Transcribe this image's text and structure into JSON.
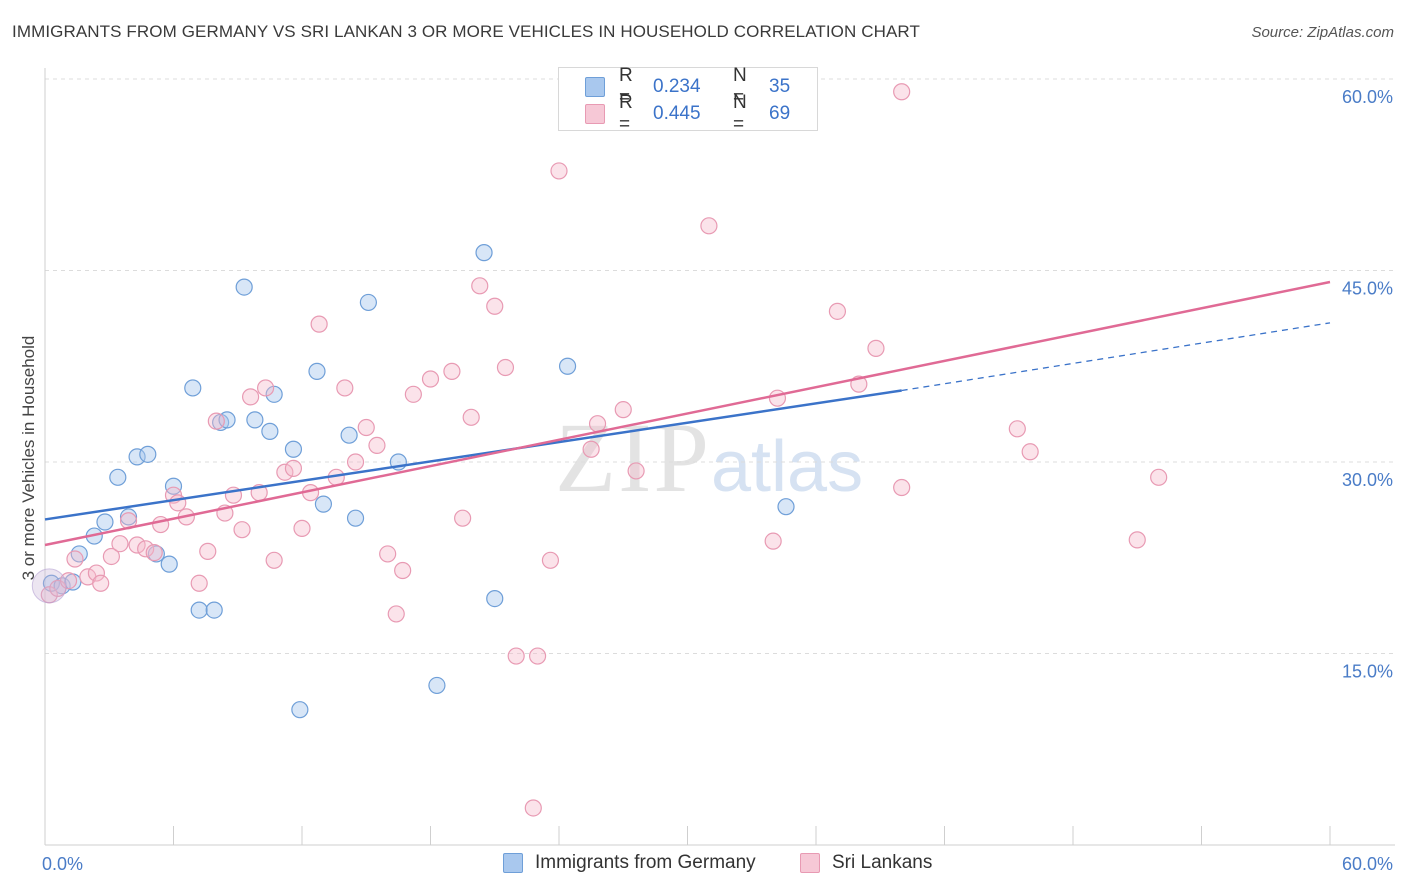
{
  "title": "IMMIGRANTS FROM GERMANY VS SRI LANKAN 3 OR MORE VEHICLES IN HOUSEHOLD CORRELATION CHART",
  "source": "Source: ZipAtlas.com",
  "watermark": {
    "zip": "ZIP",
    "atlas": "atlas"
  },
  "legend": {
    "rows": [
      {
        "r_label": "R =",
        "r_value": "0.234",
        "n_label": "N =",
        "n_value": "35",
        "color": "#a9c8ee"
      },
      {
        "r_label": "R =",
        "r_value": "0.445",
        "n_label": "N =",
        "n_value": "69",
        "color": "#f6b8cb"
      }
    ]
  },
  "bottom_legend": [
    {
      "label": "Immigrants from Germany",
      "color": "#a9c8ee"
    },
    {
      "label": "Sri Lankans",
      "color": "#f6b8cb"
    }
  ],
  "chart_data": {
    "type": "scatter",
    "title": "IMMIGRANTS FROM GERMANY VS SRI LANKAN 3 OR MORE VEHICLES IN HOUSEHOLD CORRELATION CHART",
    "xlabel": "",
    "ylabel": "3 or more Vehicles in Household",
    "xlim": [
      0,
      60
    ],
    "ylim": [
      0,
      60
    ],
    "x_tick_labels": [
      "0.0%",
      "60.0%"
    ],
    "y_ticks": [
      15,
      30,
      45,
      60
    ],
    "y_tick_labels": [
      "15.0%",
      "30.0%",
      "45.0%",
      "60.0%"
    ],
    "grid": true,
    "legend_position": "top-center",
    "series": [
      {
        "name": "Immigrants from Germany",
        "color": "#3b73c9",
        "fill": "#a9c8ee",
        "points": [
          [
            0.3,
            20.5
          ],
          [
            0.8,
            20.3
          ],
          [
            1.3,
            20.6
          ],
          [
            1.6,
            22.8
          ],
          [
            2.3,
            24.2
          ],
          [
            2.8,
            25.3
          ],
          [
            3.4,
            28.8
          ],
          [
            3.9,
            25.7
          ],
          [
            4.3,
            30.4
          ],
          [
            4.8,
            30.6
          ],
          [
            5.2,
            22.8
          ],
          [
            5.8,
            22.0
          ],
          [
            6.0,
            28.1
          ],
          [
            6.9,
            35.8
          ],
          [
            7.2,
            18.4
          ],
          [
            7.9,
            18.4
          ],
          [
            8.2,
            33.1
          ],
          [
            8.5,
            33.3
          ],
          [
            9.3,
            43.7
          ],
          [
            9.8,
            33.3
          ],
          [
            10.5,
            32.4
          ],
          [
            10.7,
            35.3
          ],
          [
            11.6,
            31.0
          ],
          [
            11.9,
            10.6
          ],
          [
            12.7,
            37.1
          ],
          [
            13.0,
            26.7
          ],
          [
            14.2,
            32.1
          ],
          [
            14.5,
            25.6
          ],
          [
            15.1,
            42.5
          ],
          [
            16.5,
            30.0
          ],
          [
            18.3,
            12.5
          ],
          [
            20.5,
            46.4
          ],
          [
            21.0,
            19.3
          ],
          [
            24.4,
            37.5
          ],
          [
            34.6,
            26.5
          ]
        ],
        "trend": {
          "x": [
            0,
            40
          ],
          "y": [
            25.5,
            35.6
          ],
          "dashed_to": [
            60,
            40.9
          ]
        }
      },
      {
        "name": "Sri Lankans",
        "color": "#e06a95",
        "fill": "#f6b8cb",
        "points": [
          [
            0.2,
            19.6
          ],
          [
            0.6,
            20.1
          ],
          [
            1.1,
            20.7
          ],
          [
            1.4,
            22.4
          ],
          [
            2.0,
            21.0
          ],
          [
            2.4,
            21.3
          ],
          [
            2.6,
            20.5
          ],
          [
            3.1,
            22.6
          ],
          [
            3.5,
            23.6
          ],
          [
            3.9,
            25.4
          ],
          [
            4.3,
            23.5
          ],
          [
            4.7,
            23.2
          ],
          [
            5.1,
            22.9
          ],
          [
            5.4,
            25.1
          ],
          [
            6.0,
            27.4
          ],
          [
            6.2,
            26.8
          ],
          [
            6.6,
            25.7
          ],
          [
            7.2,
            20.5
          ],
          [
            7.6,
            23.0
          ],
          [
            8.0,
            33.2
          ],
          [
            8.4,
            26.0
          ],
          [
            8.8,
            27.4
          ],
          [
            9.2,
            24.7
          ],
          [
            9.6,
            35.1
          ],
          [
            10.0,
            27.6
          ],
          [
            10.3,
            35.8
          ],
          [
            10.7,
            22.3
          ],
          [
            11.2,
            29.2
          ],
          [
            11.6,
            29.5
          ],
          [
            12.0,
            24.8
          ],
          [
            12.4,
            27.6
          ],
          [
            12.8,
            40.8
          ],
          [
            13.6,
            28.8
          ],
          [
            14.0,
            35.8
          ],
          [
            14.5,
            30.0
          ],
          [
            15.0,
            32.7
          ],
          [
            15.5,
            31.3
          ],
          [
            16.0,
            22.8
          ],
          [
            16.4,
            18.1
          ],
          [
            16.7,
            21.5
          ],
          [
            17.2,
            35.3
          ],
          [
            18.0,
            36.5
          ],
          [
            19.0,
            37.1
          ],
          [
            19.5,
            25.6
          ],
          [
            19.9,
            33.5
          ],
          [
            20.3,
            43.8
          ],
          [
            21.0,
            42.2
          ],
          [
            21.5,
            37.4
          ],
          [
            22.0,
            14.8
          ],
          [
            23.0,
            14.8
          ],
          [
            22.8,
            2.9
          ],
          [
            23.6,
            22.3
          ],
          [
            24.0,
            52.8
          ],
          [
            25.5,
            31.0
          ],
          [
            25.8,
            33.0
          ],
          [
            27.0,
            34.1
          ],
          [
            27.6,
            29.3
          ],
          [
            31.0,
            48.5
          ],
          [
            34.0,
            23.8
          ],
          [
            34.2,
            35.0
          ],
          [
            37.0,
            41.8
          ],
          [
            38.0,
            36.1
          ],
          [
            38.8,
            38.9
          ],
          [
            40.0,
            28.0
          ],
          [
            40.0,
            59.0
          ],
          [
            45.4,
            32.6
          ],
          [
            46.0,
            30.8
          ],
          [
            51.0,
            23.9
          ],
          [
            52.0,
            28.8
          ]
        ],
        "trend": {
          "x": [
            0,
            60
          ],
          "y": [
            23.5,
            44.1
          ]
        }
      }
    ]
  }
}
